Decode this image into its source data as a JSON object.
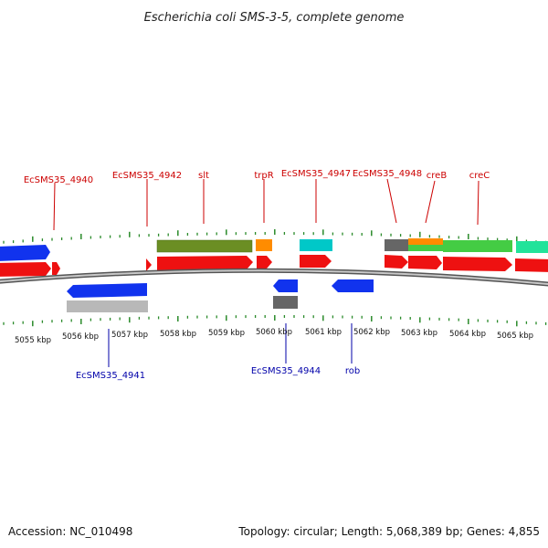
{
  "title": "Escherichia coli SMS-3-5, complete genome",
  "footer": {
    "accession": "Accession: NC_010498",
    "summary": "Topology: circular; Length: 5,068,389 bp; Genes: 4,855"
  },
  "scale": {
    "labels": [
      "5055 kbp",
      "5056 kbp",
      "5057 kbp",
      "5058 kbp",
      "5059 kbp",
      "5060 kbp",
      "5061 kbp",
      "5062 kbp",
      "5063 kbp",
      "5064 kbp",
      "5065 kbp"
    ]
  },
  "colors": {
    "forward_cds": "#ee1111",
    "reverse_cds": "#1122dd",
    "label_forward": "#cc0000",
    "label_reverse": "#0000aa",
    "backbone": "#888888",
    "ticks": "#2a8a2a"
  },
  "labels_top": [
    "EcSMS35_4940",
    "EcSMS35_4942",
    "slt",
    "trpR",
    "EcSMS35_4947",
    "EcSMS35_4948",
    "creB",
    "creC"
  ],
  "labels_bottom": [
    "EcSMS35_4941",
    "EcSMS35_4944",
    "rob"
  ]
}
